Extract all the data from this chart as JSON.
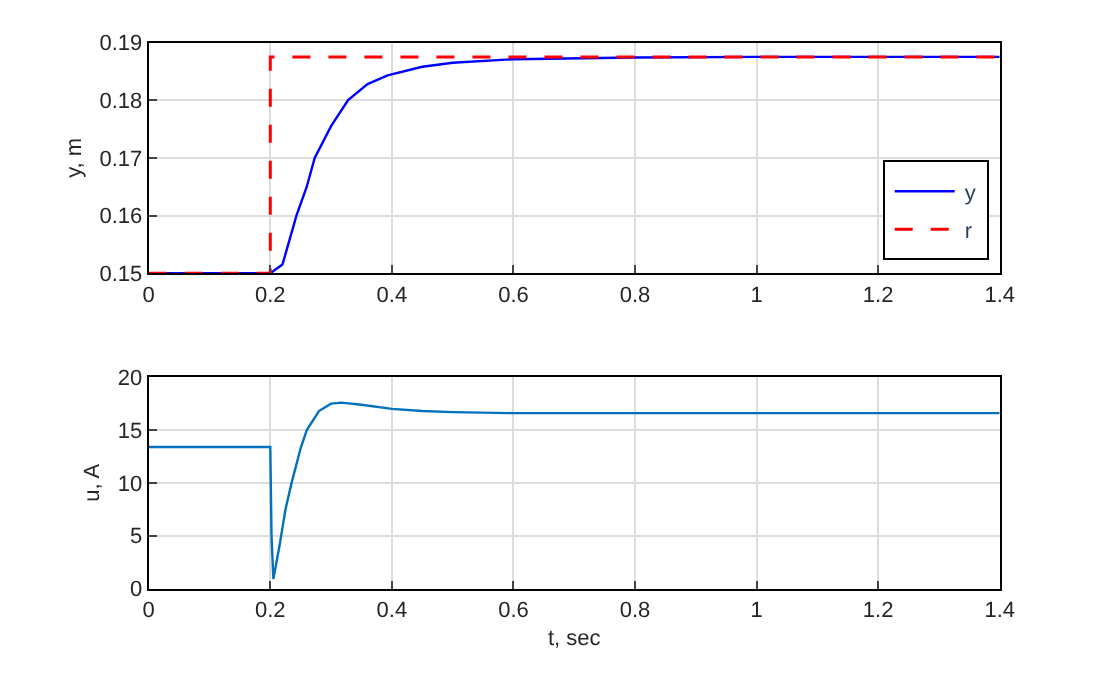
{
  "chart_data": [
    {
      "type": "line",
      "ylabel": "y, m",
      "xlim": [
        0,
        1.4
      ],
      "xticks": [
        0,
        0.2,
        0.4,
        0.6,
        0.8,
        1,
        1.2,
        1.4
      ],
      "ylim": [
        0.15,
        0.19
      ],
      "yticks": [
        0.15,
        0.16,
        0.17,
        0.18,
        0.19
      ],
      "grid": true,
      "legend": "bottom right",
      "series": [
        {
          "name": "y",
          "color": "#0000ff",
          "line_style": "solid",
          "x": [
            0,
            0.2,
            0.22,
            0.243,
            0.26,
            0.273,
            0.3,
            0.328,
            0.36,
            0.393,
            0.45,
            0.5,
            0.6,
            0.8,
            1.0,
            1.4
          ],
          "values": [
            0.15,
            0.15,
            0.1515,
            0.16,
            0.165,
            0.17,
            0.1755,
            0.18,
            0.1828,
            0.1843,
            0.1858,
            0.1865,
            0.1871,
            0.1874,
            0.1875,
            0.1875
          ]
        },
        {
          "name": "r",
          "color": "#ff0000",
          "line_style": "dashed",
          "x": [
            0,
            0.2,
            0.2,
            1.4
          ],
          "values": [
            0.15,
            0.15,
            0.1875,
            0.1875
          ]
        }
      ]
    },
    {
      "type": "line",
      "xlabel": "t, sec",
      "ylabel": "u, A",
      "xlim": [
        0,
        1.4
      ],
      "xticks": [
        0,
        0.2,
        0.4,
        0.6,
        0.8,
        1,
        1.2,
        1.4
      ],
      "ylim": [
        0,
        20
      ],
      "yticks": [
        0,
        5,
        10,
        15,
        20
      ],
      "grid": true,
      "series": [
        {
          "color": "#0072bd",
          "line_style": "solid",
          "x": [
            0,
            0.2,
            0.202,
            0.205,
            0.215,
            0.225,
            0.235,
            0.25,
            0.26,
            0.28,
            0.3,
            0.317,
            0.35,
            0.4,
            0.45,
            0.5,
            0.6,
            1.4
          ],
          "values": [
            13.4,
            13.4,
            5,
            0.9,
            4,
            7.5,
            10,
            13.3,
            15,
            16.8,
            17.5,
            17.6,
            17.4,
            17.0,
            16.8,
            16.7,
            16.6,
            16.6
          ]
        }
      ]
    }
  ]
}
